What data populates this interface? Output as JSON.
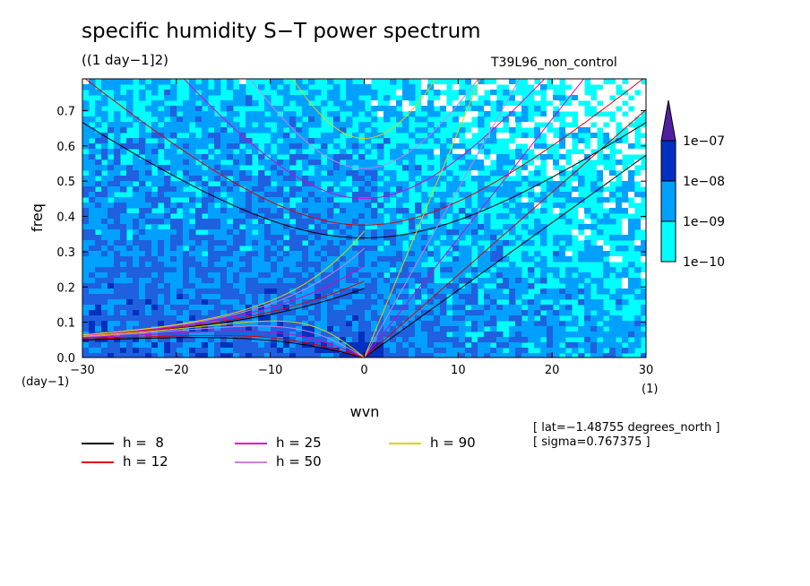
{
  "header": {
    "title": "specific humidity S−T power spectrum",
    "subtitle": "((1 day−1]2)",
    "run_name": "T39L96_non_control"
  },
  "info": {
    "lat": "[ lat=−1.48755 degrees_north ]",
    "sigma": "[ sigma=0.767375 ]"
  },
  "chart_data": {
    "type": "heatmap",
    "title": "specific humidity S−T power spectrum",
    "xlabel": "wvn",
    "ylabel": "freq",
    "x_unit_label": "(1)",
    "y_unit_label": "(day−1)",
    "xlim": [
      -30,
      30
    ],
    "ylim": [
      0,
      0.79
    ],
    "x_ticks": [
      "−30",
      "−20",
      "−10",
      "0",
      "10",
      "20",
      "30"
    ],
    "x_tick_values": [
      -30,
      -20,
      -10,
      0,
      10,
      20,
      30
    ],
    "y_ticks": [
      "0.0",
      "0.1",
      "0.2",
      "0.3",
      "0.4",
      "0.5",
      "0.6",
      "0.7"
    ],
    "y_tick_values": [
      0,
      0.1,
      0.2,
      0.3,
      0.4,
      0.5,
      0.6,
      0.7
    ],
    "colorbar": {
      "labels": [
        "1e−10",
        "1e−09",
        "1e−08",
        "1e−07"
      ],
      "colors": [
        "#00ffff",
        "#00a0ff",
        "#1e60e0",
        "#0030c0",
        "#5020a0"
      ]
    },
    "background_color": "#ffffff",
    "dispersion_curves": [
      {
        "name": "h =  8",
        "h": 8,
        "color": "#000000"
      },
      {
        "name": "h = 12",
        "h": 12,
        "color": "#e00000"
      },
      {
        "name": "h = 25",
        "h": 25,
        "color": "#e000c0"
      },
      {
        "name": "h = 50",
        "h": 50,
        "color": "#d080e0"
      },
      {
        "name": "h = 90",
        "h": 90,
        "color": "#e0d000"
      }
    ]
  }
}
